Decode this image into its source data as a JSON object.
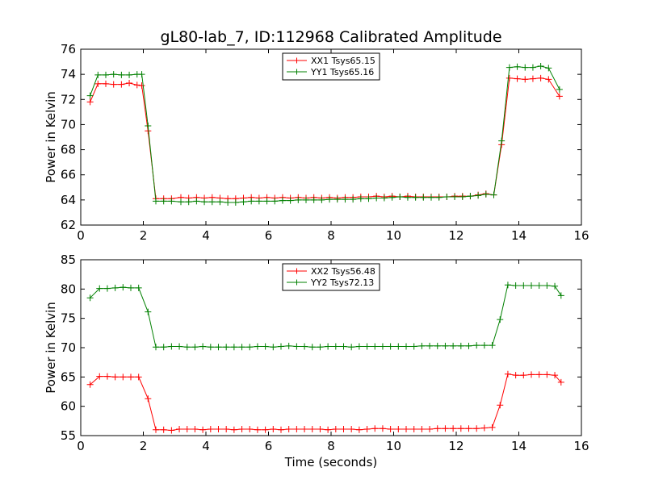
{
  "chart_data": {
    "type": "line",
    "title": "gL80-lab_7, ID:112968 Calibrated Amplitude",
    "xlabel": "Time (seconds)",
    "panels": [
      {
        "ylabel": "Power in Kelvin",
        "xlim": [
          0,
          16
        ],
        "ylim": [
          62,
          76
        ],
        "xticks": [
          "0",
          "2",
          "4",
          "6",
          "8",
          "10",
          "12",
          "14",
          "16"
        ],
        "yticks": [
          "62",
          "64",
          "66",
          "68",
          "70",
          "72",
          "74",
          "76"
        ],
        "legend_position": "top-center",
        "x": [
          0.3,
          0.55,
          0.8,
          1.05,
          1.3,
          1.55,
          1.8,
          1.95,
          2.15,
          2.4,
          2.65,
          2.9,
          3.2,
          3.45,
          3.7,
          3.95,
          4.2,
          4.45,
          4.7,
          4.95,
          5.2,
          5.45,
          5.7,
          5.95,
          6.2,
          6.45,
          6.7,
          6.95,
          7.2,
          7.45,
          7.7,
          7.95,
          8.2,
          8.45,
          8.7,
          8.95,
          9.2,
          9.45,
          9.7,
          9.95,
          10.2,
          10.45,
          10.7,
          10.95,
          11.2,
          11.45,
          11.7,
          11.95,
          12.2,
          12.45,
          12.7,
          12.95,
          13.2,
          13.45,
          13.7,
          13.95,
          14.2,
          14.45,
          14.7,
          14.95,
          15.3
        ],
        "series": [
          {
            "name": "XX1 Tsys65.15",
            "color": "#ff0000",
            "values": [
              71.8,
              73.25,
              73.25,
              73.2,
              73.2,
              73.3,
              73.15,
              73.1,
              69.5,
              64.1,
              64.1,
              64.1,
              64.2,
              64.15,
              64.2,
              64.15,
              64.2,
              64.15,
              64.1,
              64.1,
              64.15,
              64.2,
              64.15,
              64.2,
              64.15,
              64.2,
              64.15,
              64.2,
              64.15,
              64.2,
              64.15,
              64.2,
              64.15,
              64.2,
              64.2,
              64.25,
              64.25,
              64.3,
              64.25,
              64.3,
              64.25,
              64.3,
              64.25,
              64.25,
              64.25,
              64.25,
              64.25,
              64.3,
              64.3,
              64.3,
              64.4,
              64.5,
              64.4,
              68.4,
              73.7,
              73.65,
              73.6,
              73.65,
              73.7,
              73.6,
              72.25
            ]
          },
          {
            "name": "YY1 Tsys65.16",
            "color": "#008000",
            "values": [
              72.3,
              73.95,
              73.95,
              74.0,
              73.95,
              73.95,
              74.0,
              74.0,
              69.9,
              63.9,
              63.9,
              63.9,
              63.85,
              63.85,
              63.9,
              63.85,
              63.85,
              63.85,
              63.8,
              63.8,
              63.85,
              63.9,
              63.9,
              63.9,
              63.9,
              63.95,
              63.95,
              64.0,
              64.0,
              64.0,
              64.0,
              64.05,
              64.05,
              64.05,
              64.05,
              64.1,
              64.1,
              64.15,
              64.15,
              64.2,
              64.25,
              64.2,
              64.2,
              64.2,
              64.2,
              64.2,
              64.25,
              64.25,
              64.25,
              64.3,
              64.35,
              64.45,
              64.4,
              68.7,
              74.55,
              74.6,
              74.55,
              74.55,
              74.65,
              74.5,
              72.8
            ]
          }
        ]
      },
      {
        "ylabel": "Power in Kelvin",
        "xlim": [
          0,
          16
        ],
        "ylim": [
          55,
          85
        ],
        "xticks": [
          "0",
          "2",
          "4",
          "6",
          "8",
          "10",
          "12",
          "14",
          "16"
        ],
        "yticks": [
          "55",
          "60",
          "65",
          "70",
          "75",
          "80",
          "85"
        ],
        "legend_position": "top-center",
        "x": [
          0.3,
          0.6,
          0.85,
          1.1,
          1.35,
          1.6,
          1.85,
          2.15,
          2.4,
          2.65,
          2.9,
          3.15,
          3.4,
          3.65,
          3.9,
          4.15,
          4.4,
          4.65,
          4.9,
          5.15,
          5.4,
          5.65,
          5.9,
          6.15,
          6.4,
          6.65,
          6.9,
          7.15,
          7.4,
          7.65,
          7.9,
          8.15,
          8.4,
          8.65,
          8.9,
          9.15,
          9.4,
          9.65,
          9.9,
          10.15,
          10.4,
          10.65,
          10.9,
          11.15,
          11.4,
          11.65,
          11.9,
          12.15,
          12.4,
          12.65,
          12.9,
          13.15,
          13.4,
          13.65,
          13.9,
          14.15,
          14.4,
          14.65,
          14.9,
          15.15,
          15.35
        ],
        "series": [
          {
            "name": "XX2 Tsys56.48",
            "color": "#ff0000",
            "values": [
              63.7,
              65.1,
              65.1,
              65.0,
              65.0,
              65.0,
              65.0,
              61.3,
              56.0,
              56.0,
              55.9,
              56.1,
              56.1,
              56.1,
              56.0,
              56.1,
              56.1,
              56.1,
              56.0,
              56.1,
              56.1,
              56.0,
              56.0,
              56.1,
              56.0,
              56.1,
              56.1,
              56.1,
              56.1,
              56.1,
              56.0,
              56.1,
              56.1,
              56.1,
              56.0,
              56.1,
              56.2,
              56.2,
              56.1,
              56.1,
              56.1,
              56.1,
              56.1,
              56.1,
              56.2,
              56.2,
              56.2,
              56.2,
              56.2,
              56.2,
              56.3,
              56.4,
              60.2,
              65.5,
              65.3,
              65.3,
              65.4,
              65.4,
              65.4,
              65.3,
              64.1
            ]
          },
          {
            "name": "YY2 Tsys72.13",
            "color": "#008000",
            "values": [
              78.5,
              80.1,
              80.1,
              80.2,
              80.3,
              80.2,
              80.2,
              76.1,
              70.1,
              70.1,
              70.2,
              70.2,
              70.1,
              70.1,
              70.2,
              70.1,
              70.1,
              70.1,
              70.1,
              70.1,
              70.1,
              70.2,
              70.2,
              70.1,
              70.2,
              70.3,
              70.2,
              70.2,
              70.1,
              70.1,
              70.2,
              70.2,
              70.2,
              70.1,
              70.2,
              70.2,
              70.2,
              70.2,
              70.2,
              70.2,
              70.2,
              70.2,
              70.3,
              70.3,
              70.3,
              70.3,
              70.3,
              70.3,
              70.3,
              70.4,
              70.4,
              70.4,
              74.8,
              80.7,
              80.6,
              80.6,
              80.6,
              80.6,
              80.6,
              80.5,
              78.9
            ]
          }
        ]
      }
    ]
  }
}
